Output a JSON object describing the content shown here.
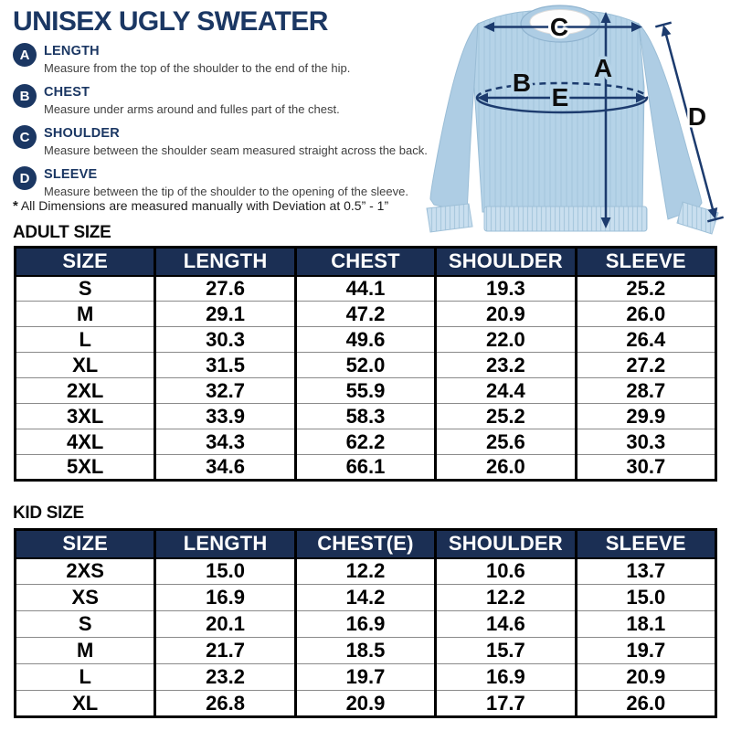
{
  "title": "UNISEX UGLY SWEATER",
  "measurements": [
    {
      "letter": "A",
      "label": "LENGTH",
      "description": "Measure from the top of the shoulder to the end of the hip."
    },
    {
      "letter": "B",
      "label": "CHEST",
      "description": "Measure under arms around and fulles part of the chest."
    },
    {
      "letter": "C",
      "label": "SHOULDER",
      "description": "Measure between the shoulder seam measured straight across the back."
    },
    {
      "letter": "D",
      "label": "SLEEVE",
      "description": "Measure between the tip of the shoulder to the opening of the sleeve."
    }
  ],
  "note": {
    "star": "*",
    "text": "All Dimensions are measured manually with Deviation at 0.5” - 1”"
  },
  "diagram": {
    "a": "A",
    "b": "B",
    "c": "C",
    "d": "D",
    "e": "E"
  },
  "adult_table": {
    "heading": "ADULT SIZE",
    "columns": [
      "SIZE",
      "LENGTH",
      "CHEST",
      "SHOULDER",
      "SLEEVE"
    ],
    "rows": [
      [
        "S",
        "27.6",
        "44.1",
        "19.3",
        "25.2"
      ],
      [
        "M",
        "29.1",
        "47.2",
        "20.9",
        "26.0"
      ],
      [
        "L",
        "30.3",
        "49.6",
        "22.0",
        "26.4"
      ],
      [
        "XL",
        "31.5",
        "52.0",
        "23.2",
        "27.2"
      ],
      [
        "2XL",
        "32.7",
        "55.9",
        "24.4",
        "28.7"
      ],
      [
        "3XL",
        "33.9",
        "58.3",
        "25.2",
        "29.9"
      ],
      [
        "4XL",
        "34.3",
        "62.2",
        "25.6",
        "30.3"
      ],
      [
        "5XL",
        "34.6",
        "66.1",
        "26.0",
        "30.7"
      ]
    ]
  },
  "kid_table": {
    "heading": "KID SIZE",
    "columns": [
      "SIZE",
      "LENGTH",
      "CHEST(E)",
      "SHOULDER",
      "SLEEVE"
    ],
    "rows": [
      [
        "2XS",
        "15.0",
        "12.2",
        "10.6",
        "13.7"
      ],
      [
        "XS",
        "16.9",
        "14.2",
        "12.2",
        "15.0"
      ],
      [
        "S",
        "20.1",
        "16.9",
        "14.6",
        "18.1"
      ],
      [
        "M",
        "21.7",
        "18.5",
        "15.7",
        "19.7"
      ],
      [
        "L",
        "23.2",
        "19.7",
        "16.9",
        "20.9"
      ],
      [
        "XL",
        "26.8",
        "20.9",
        "17.7",
        "26.0"
      ]
    ]
  },
  "colors": {
    "navy_title": "#1b3763",
    "navy_table_header": "#1b2f54",
    "arrow_navy": "#1c3b6e",
    "sweater_light_blue": "#b5d3e8",
    "table_border": "#000000",
    "row_divider": "#8a8a8a"
  }
}
